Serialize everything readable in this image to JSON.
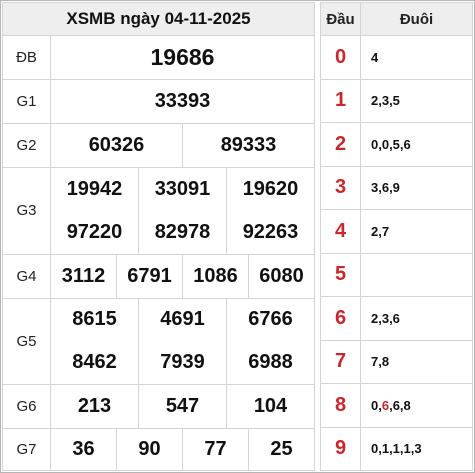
{
  "title": "XSMB ngày 04-11-2025",
  "prizes": {
    "db": {
      "label": "ĐB",
      "numbers": [
        "19686"
      ]
    },
    "g1": {
      "label": "G1",
      "numbers": [
        "33393"
      ]
    },
    "g2": {
      "label": "G2",
      "numbers": [
        "60326",
        "89333"
      ]
    },
    "g3": {
      "label": "G3",
      "numbers": [
        "19942",
        "33091",
        "19620",
        "97220",
        "82978",
        "92263"
      ]
    },
    "g4": {
      "label": "G4",
      "numbers": [
        "3112",
        "6791",
        "1086",
        "6080"
      ]
    },
    "g5": {
      "label": "G5",
      "numbers": [
        "8615",
        "4691",
        "6766",
        "8462",
        "7939",
        "6988"
      ]
    },
    "g6": {
      "label": "G6",
      "numbers": [
        "213",
        "547",
        "104"
      ]
    },
    "g7": {
      "label": "G7",
      "numbers": [
        "36",
        "90",
        "77",
        "25"
      ]
    }
  },
  "loto": {
    "head_header": "Đầu",
    "tail_header": "Đuôi",
    "rows": [
      {
        "head": "0",
        "tail": "4"
      },
      {
        "head": "1",
        "tail": "2,3,5"
      },
      {
        "head": "2",
        "tail": "0,0,5,6"
      },
      {
        "head": "3",
        "tail": "3,6,9"
      },
      {
        "head": "4",
        "tail": "2,7"
      },
      {
        "head": "5",
        "tail": ""
      },
      {
        "head": "6",
        "tail": "2,3,6"
      },
      {
        "head": "7",
        "tail": "7,8"
      },
      {
        "head": "8",
        "tail_parts": [
          "0,",
          "6",
          ",6,8"
        ],
        "tail_highlight_index": 1
      },
      {
        "head": "9",
        "tail": "0,1,1,1,3"
      }
    ]
  },
  "colors": {
    "accent_red": "#c8272d",
    "header_bg": "#eeeeee",
    "border": "#d4d4d4"
  }
}
